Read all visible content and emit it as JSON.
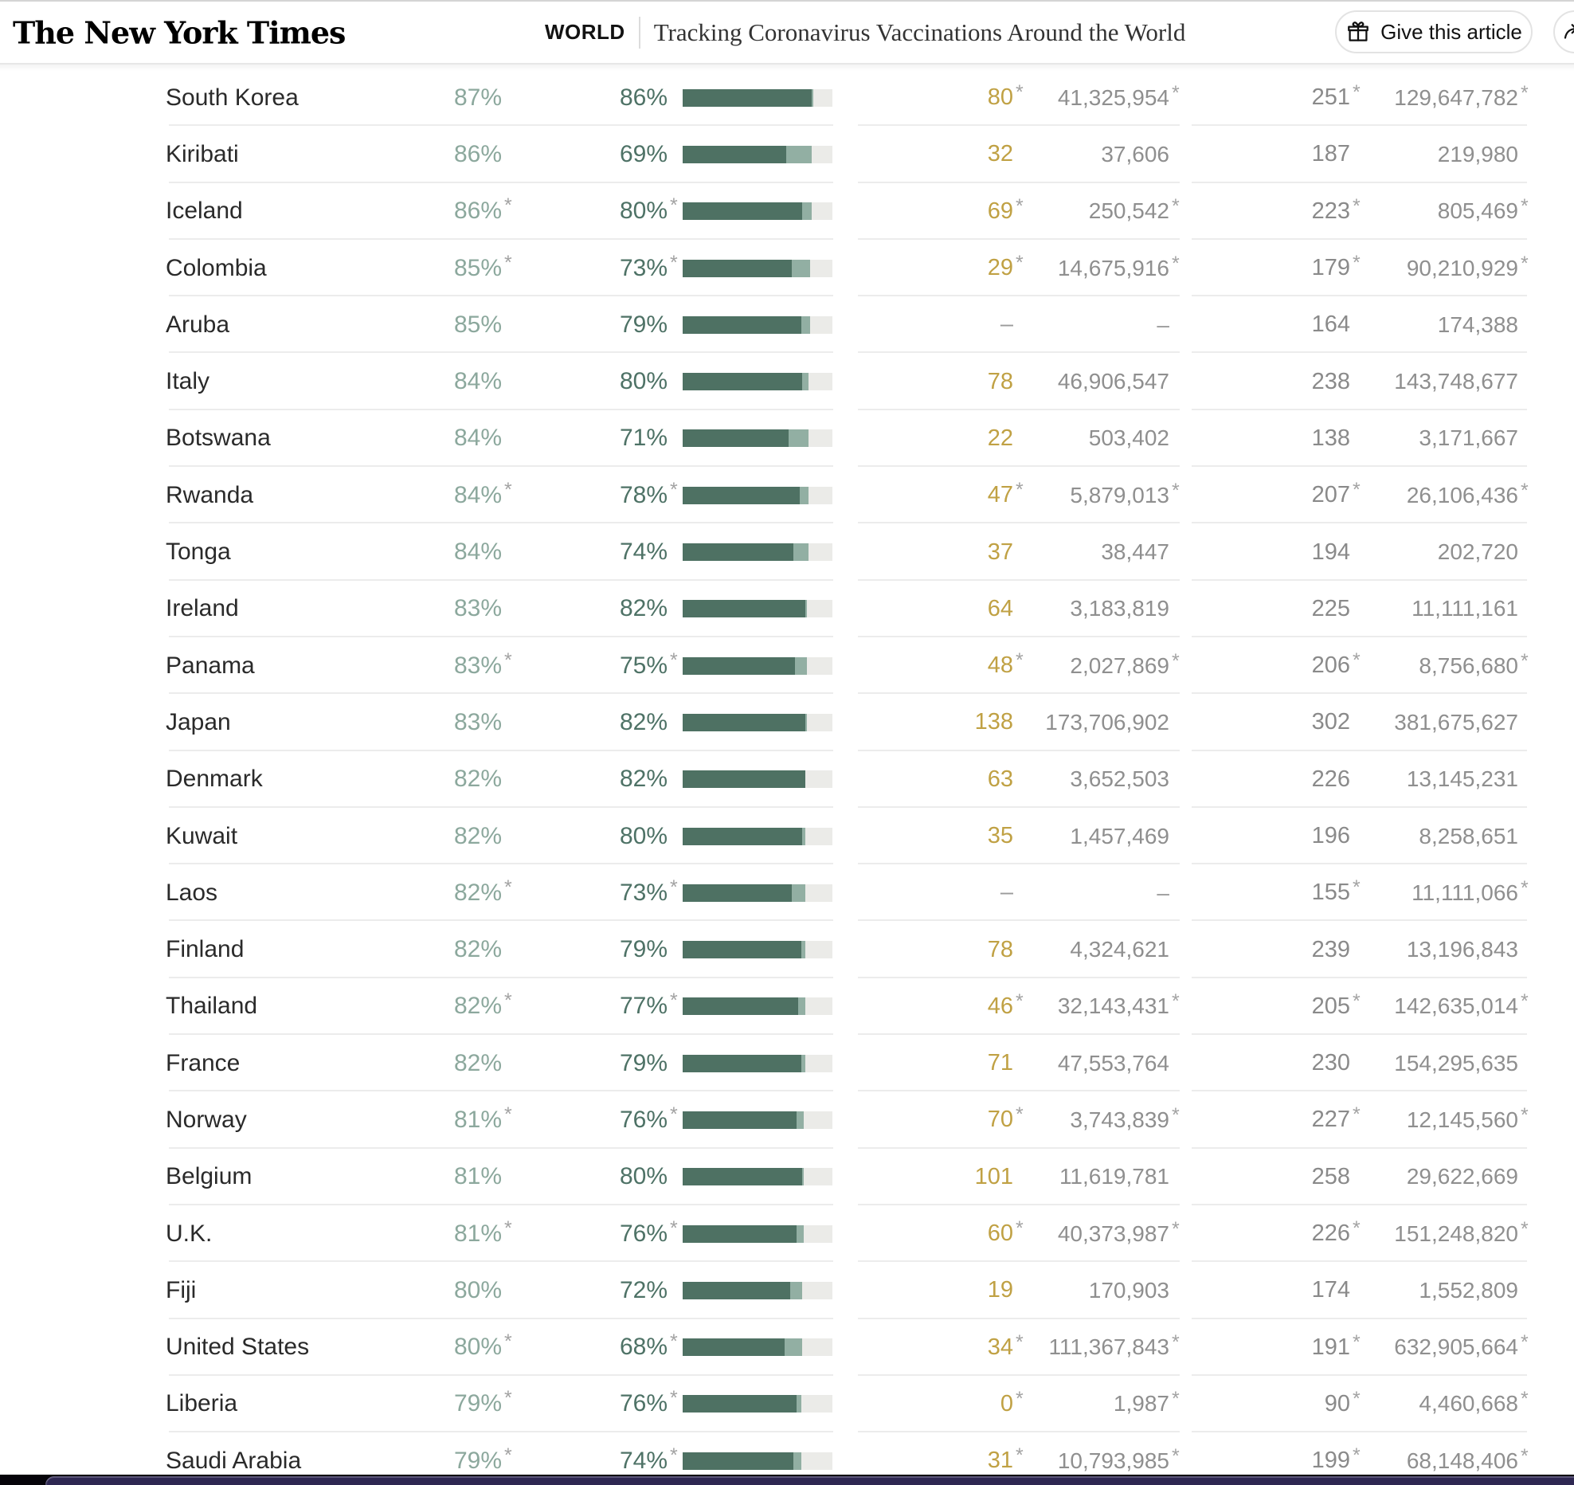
{
  "header": {
    "logo": "The New York Times",
    "section": "WORLD",
    "title": "Tracking Coronavirus Vaccinations Around the World",
    "give_button": "Give this article"
  },
  "colors": {
    "pct_one_dose": "#8CA89D",
    "pct_fully": "#4E7266",
    "bar_fully": "#4E7163",
    "bar_one_dose": "#92AFA3",
    "bar_track": "#EBEBE8",
    "recent_gold": "#C0A144",
    "gray_number": "#8f8f8f"
  },
  "table": {
    "columns": [
      "country",
      "pct_at_least_one_dose",
      "pct_fully_vaccinated",
      "recent_doses_per_100",
      "doses_given",
      "total_per_100",
      "total_doses"
    ],
    "rows": [
      [
        "South Korea",
        "87%",
        "86%",
        "80*",
        "41,325,954*",
        "251*",
        "129,647,782*"
      ],
      [
        "Kiribati",
        "86%",
        "69%",
        "32",
        "37,606",
        "187",
        "219,980"
      ],
      [
        "Iceland",
        "86%*",
        "80%*",
        "69*",
        "250,542*",
        "223*",
        "805,469*"
      ],
      [
        "Colombia",
        "85%*",
        "73%*",
        "29*",
        "14,675,916*",
        "179*",
        "90,210,929*"
      ],
      [
        "Aruba",
        "85%",
        "79%",
        "–",
        "–",
        "164",
        "174,388"
      ],
      [
        "Italy",
        "84%",
        "80%",
        "78",
        "46,906,547",
        "238",
        "143,748,677"
      ],
      [
        "Botswana",
        "84%",
        "71%",
        "22",
        "503,402",
        "138",
        "3,171,667"
      ],
      [
        "Rwanda",
        "84%*",
        "78%*",
        "47*",
        "5,879,013*",
        "207*",
        "26,106,436*"
      ],
      [
        "Tonga",
        "84%",
        "74%",
        "37",
        "38,447",
        "194",
        "202,720"
      ],
      [
        "Ireland",
        "83%",
        "82%",
        "64",
        "3,183,819",
        "225",
        "11,111,161"
      ],
      [
        "Panama",
        "83%*",
        "75%*",
        "48*",
        "2,027,869*",
        "206*",
        "8,756,680*"
      ],
      [
        "Japan",
        "83%",
        "82%",
        "138",
        "173,706,902",
        "302",
        "381,675,627"
      ],
      [
        "Denmark",
        "82%",
        "82%",
        "63",
        "3,652,503",
        "226",
        "13,145,231"
      ],
      [
        "Kuwait",
        "82%",
        "80%",
        "35",
        "1,457,469",
        "196",
        "8,258,651"
      ],
      [
        "Laos",
        "82%*",
        "73%*",
        "–",
        "–",
        "155*",
        "11,111,066*"
      ],
      [
        "Finland",
        "82%",
        "79%",
        "78",
        "4,324,621",
        "239",
        "13,196,843"
      ],
      [
        "Thailand",
        "82%*",
        "77%*",
        "46*",
        "32,143,431*",
        "205*",
        "142,635,014*"
      ],
      [
        "France",
        "82%",
        "79%",
        "71",
        "47,553,764",
        "230",
        "154,295,635"
      ],
      [
        "Norway",
        "81%*",
        "76%*",
        "70*",
        "3,743,839*",
        "227*",
        "12,145,560*"
      ],
      [
        "Belgium",
        "81%",
        "80%",
        "101",
        "11,619,781",
        "258",
        "29,622,669"
      ],
      [
        "U.K.",
        "81%*",
        "76%*",
        "60*",
        "40,373,987*",
        "226*",
        "151,248,820*"
      ],
      [
        "Fiji",
        "80%",
        "72%",
        "19",
        "170,903",
        "174",
        "1,552,809"
      ],
      [
        "United States",
        "80%*",
        "68%*",
        "34*",
        "111,367,843*",
        "191*",
        "632,905,664*"
      ],
      [
        "Liberia",
        "79%*",
        "76%*",
        "0*",
        "1,987*",
        "90*",
        "4,460,668*"
      ],
      [
        "Saudi Arabia",
        "79%*",
        "74%*",
        "31*",
        "10,793,985*",
        "199*",
        "68,148,406*"
      ]
    ]
  }
}
